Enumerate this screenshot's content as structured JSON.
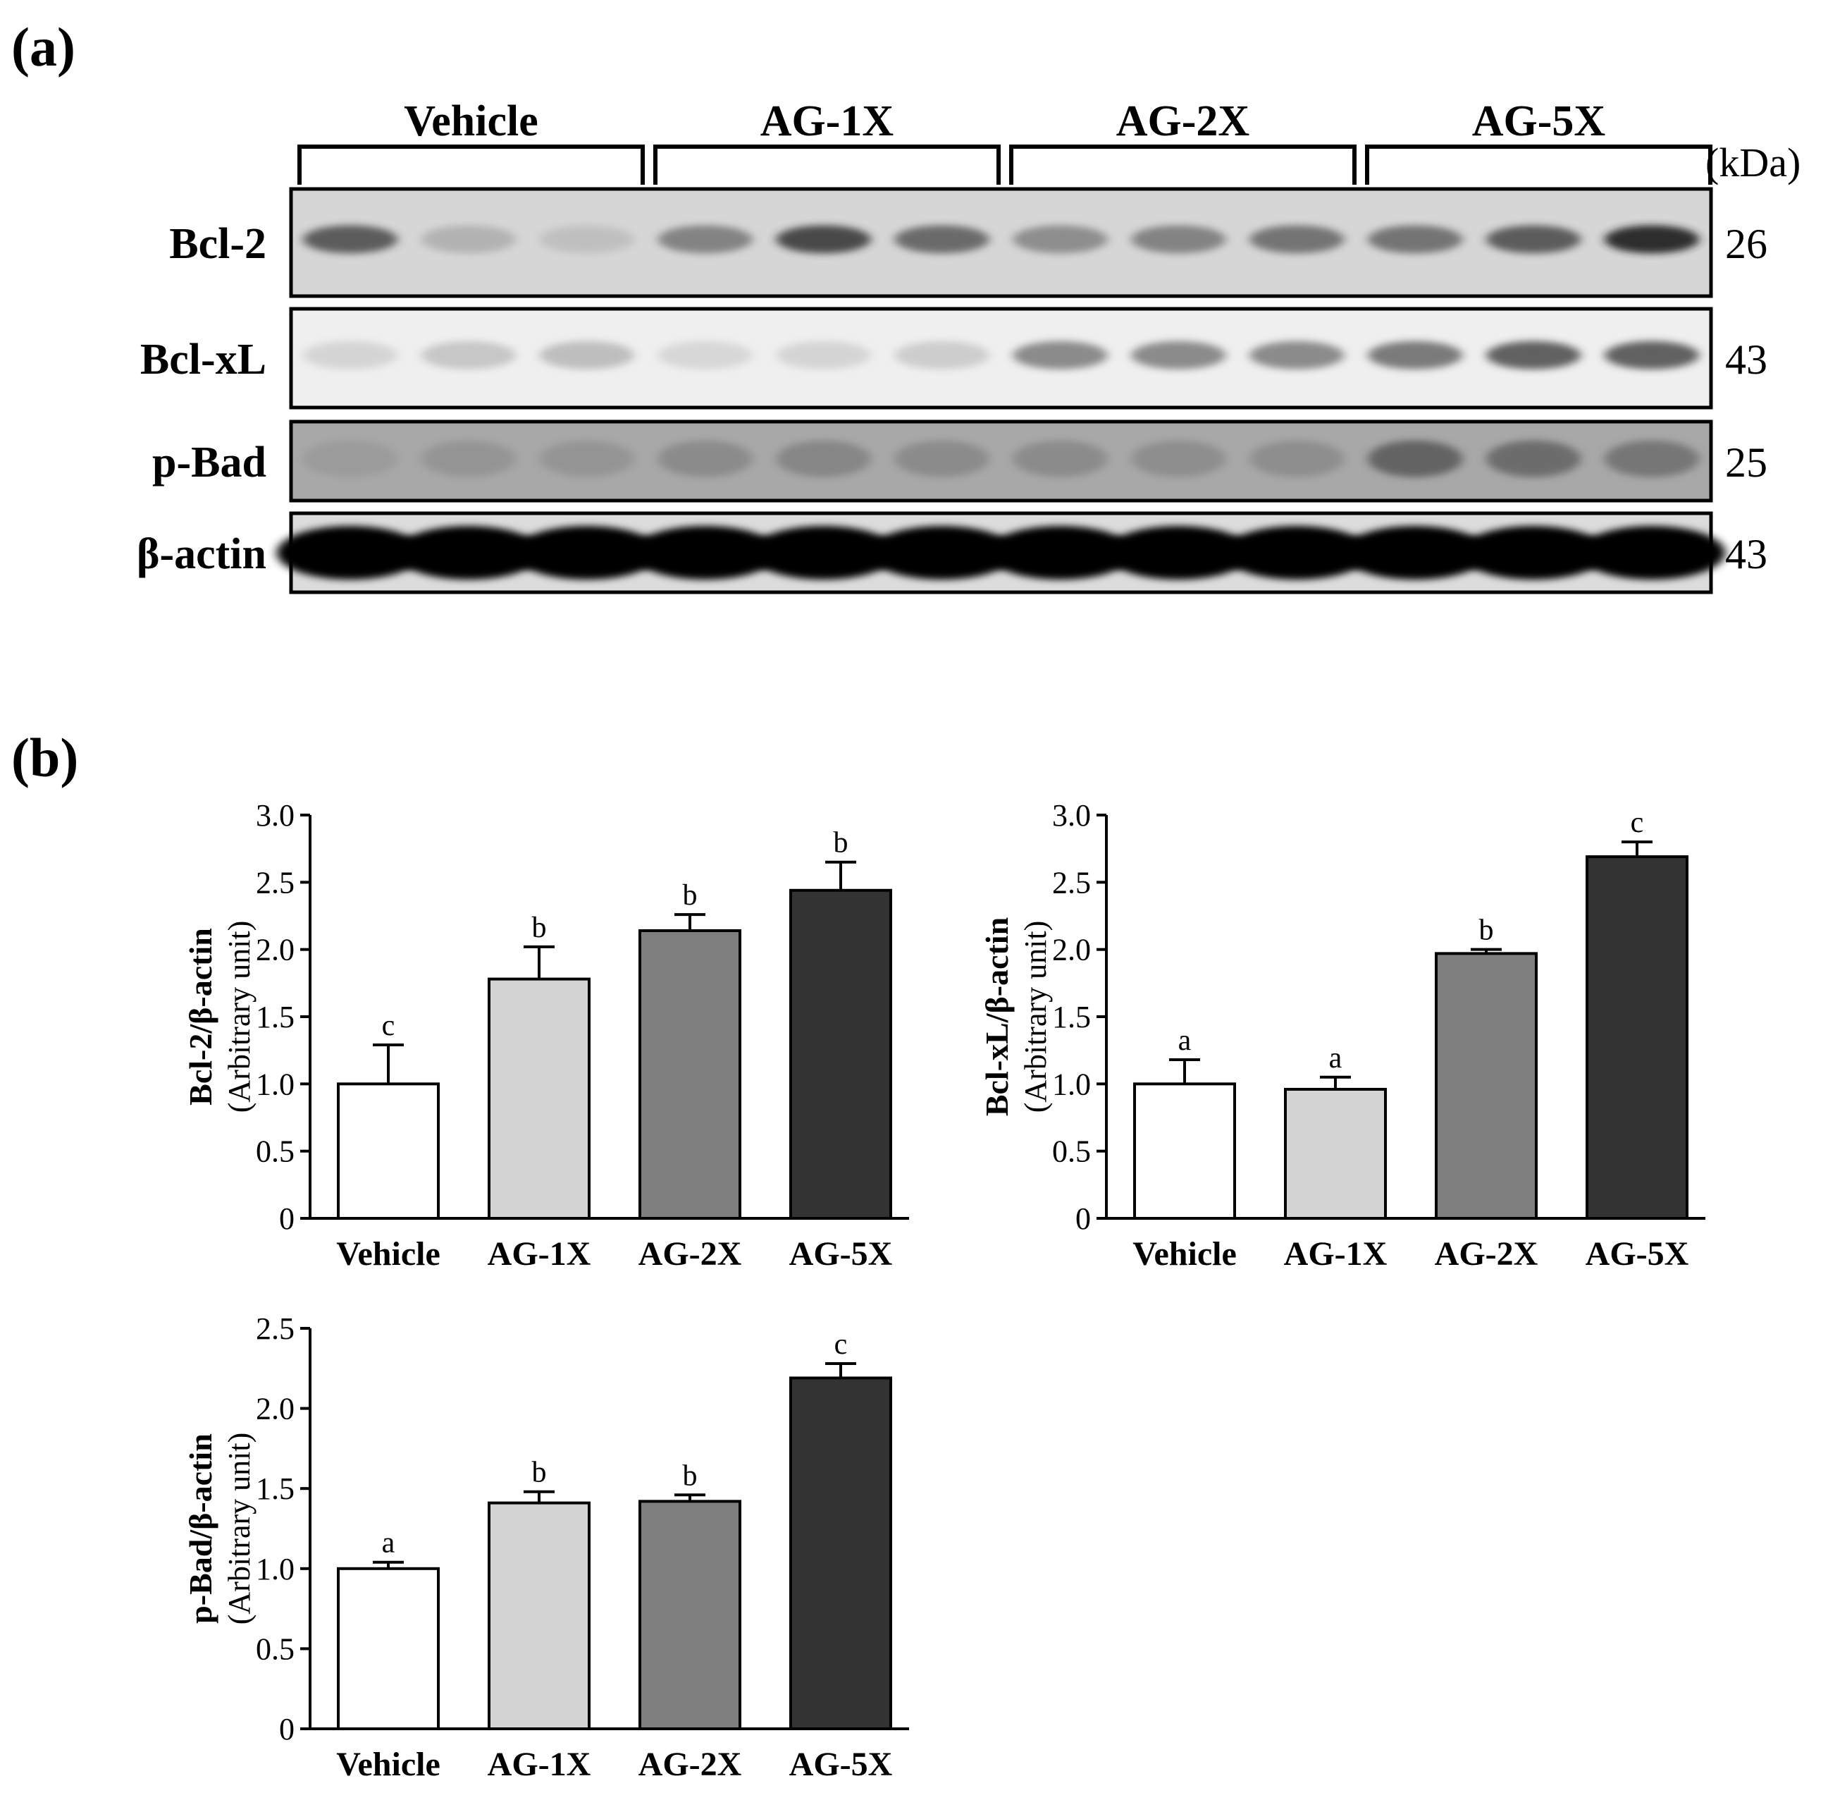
{
  "panels": {
    "a": "(a)",
    "b": "(b)"
  },
  "blot": {
    "groups": [
      "Vehicle",
      "AG-1X",
      "AG-2X",
      "AG-5X"
    ],
    "kda_label": "(kDa)",
    "rows": [
      {
        "name": "Bcl-2",
        "kda": "26",
        "bg": "#d6d6d6",
        "intensity": [
          0.72,
          0.28,
          0.18,
          0.55,
          0.8,
          0.66,
          0.5,
          0.55,
          0.62,
          0.62,
          0.72,
          0.9
        ]
      },
      {
        "name": "Bcl-xL",
        "kda": "43",
        "bg": "#efefef",
        "intensity": [
          0.12,
          0.22,
          0.28,
          0.1,
          0.12,
          0.18,
          0.55,
          0.55,
          0.55,
          0.62,
          0.72,
          0.72
        ]
      },
      {
        "name": "p-Bad",
        "kda": "25",
        "bg": "#a8a8a8",
        "intensity": [
          0.3,
          0.35,
          0.35,
          0.42,
          0.45,
          0.42,
          0.42,
          0.4,
          0.4,
          0.65,
          0.6,
          0.55
        ]
      },
      {
        "name": "β-actin",
        "kda": "43",
        "bg": "#dcdcdc",
        "intensity": [
          1,
          1,
          1,
          1,
          1,
          1,
          1,
          1,
          1,
          1,
          1,
          1
        ]
      }
    ]
  },
  "chart_data": [
    {
      "type": "bar",
      "categories": [
        "Vehicle",
        "AG-1X",
        "AG-2X",
        "AG-5X"
      ],
      "values": [
        1.0,
        1.78,
        2.14,
        2.44
      ],
      "errors": [
        0.29,
        0.24,
        0.12,
        0.21
      ],
      "letters": [
        "c",
        "b",
        "b",
        "b"
      ],
      "ylabel_main": "Bcl-2/β-actin",
      "ylabel_sub": "(Arbitrary unit)",
      "ylim": [
        0,
        3.0
      ],
      "yticks": [
        "0",
        "0.5",
        "1.0",
        "1.5",
        "2.0",
        "2.5",
        "3.0"
      ],
      "colors": [
        "#ffffff",
        "#d3d3d3",
        "#7f7f7f",
        "#333333"
      ]
    },
    {
      "type": "bar",
      "categories": [
        "Vehicle",
        "AG-1X",
        "AG-2X",
        "AG-5X"
      ],
      "values": [
        1.0,
        0.96,
        1.97,
        2.69
      ],
      "errors": [
        0.18,
        0.09,
        0.03,
        0.11
      ],
      "letters": [
        "a",
        "a",
        "b",
        "c"
      ],
      "ylabel_main": "Bcl-xL/β-actin",
      "ylabel_sub": "(Arbitrary unit)",
      "ylim": [
        0,
        3.0
      ],
      "yticks": [
        "0",
        "0.5",
        "1.0",
        "1.5",
        "2.0",
        "2.5",
        "3.0"
      ],
      "colors": [
        "#ffffff",
        "#d3d3d3",
        "#7f7f7f",
        "#333333"
      ]
    },
    {
      "type": "bar",
      "categories": [
        "Vehicle",
        "AG-1X",
        "AG-2X",
        "AG-5X"
      ],
      "values": [
        1.0,
        1.41,
        1.42,
        2.19
      ],
      "errors": [
        0.04,
        0.07,
        0.04,
        0.09
      ],
      "letters": [
        "a",
        "b",
        "b",
        "c"
      ],
      "ylabel_main": "p-Bad/β-actin",
      "ylabel_sub": "(Arbitrary unit)",
      "ylim": [
        0,
        2.5
      ],
      "yticks": [
        "0",
        "0.5",
        "1.0",
        "1.5",
        "2.0",
        "2.5"
      ],
      "colors": [
        "#ffffff",
        "#d3d3d3",
        "#7f7f7f",
        "#333333"
      ]
    }
  ]
}
